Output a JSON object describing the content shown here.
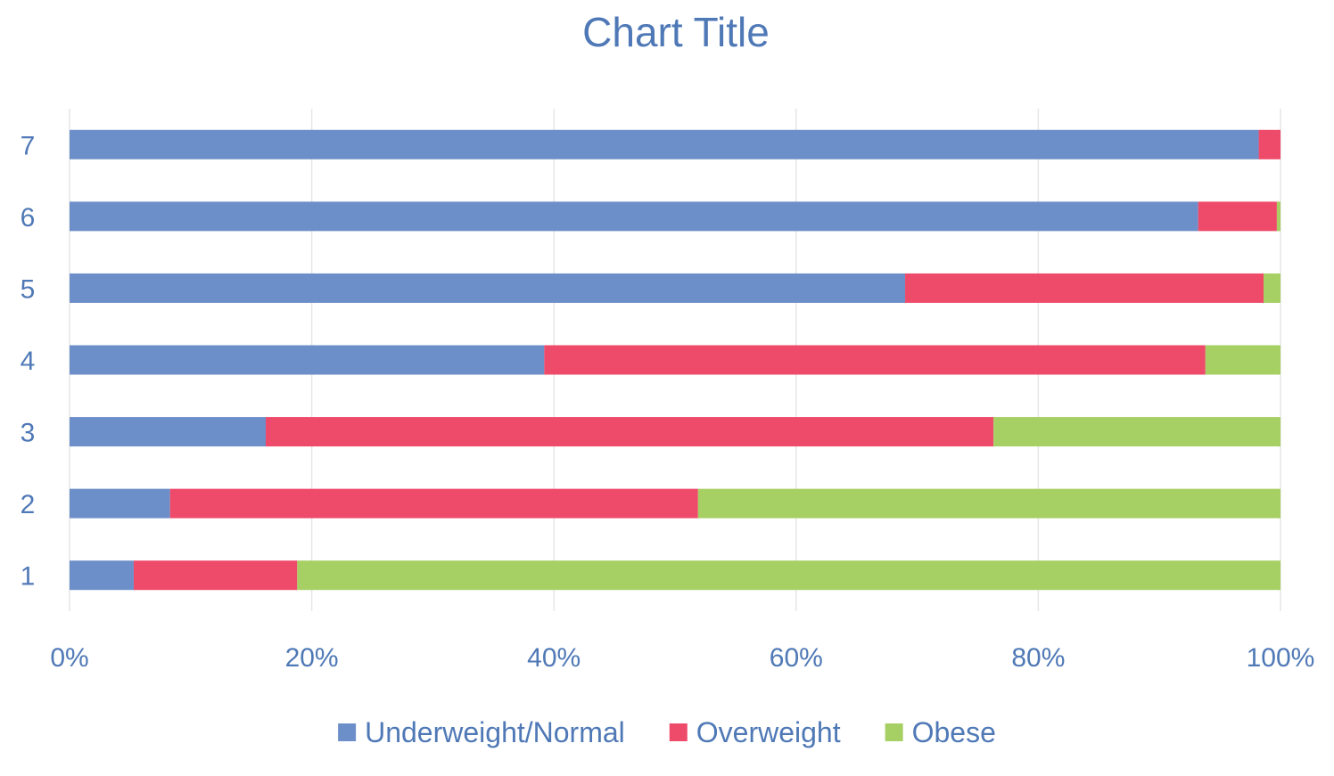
{
  "chart_data": {
    "type": "bar",
    "orientation": "horizontal",
    "stacked": "percent",
    "title": "Chart Title",
    "categories": [
      "1",
      "2",
      "3",
      "4",
      "5",
      "6",
      "7"
    ],
    "series": [
      {
        "name": "Underweight/Normal",
        "color": "#6d8fc9",
        "values": [
          5.3,
          8.3,
          16.2,
          39.2,
          69.0,
          93.2,
          98.2
        ]
      },
      {
        "name": "Overweight",
        "color": "#ee4a6a",
        "values": [
          13.5,
          43.6,
          60.1,
          54.6,
          29.6,
          6.5,
          1.8
        ]
      },
      {
        "name": "Obese",
        "color": "#a6cf64",
        "values": [
          81.2,
          48.1,
          23.7,
          6.2,
          1.4,
          0.3,
          0.0
        ]
      }
    ],
    "xaxis": {
      "ticks": [
        "0%",
        "20%",
        "40%",
        "60%",
        "80%",
        "100%"
      ],
      "range": [
        0,
        100
      ]
    },
    "grid": true,
    "legend": "bottom"
  }
}
